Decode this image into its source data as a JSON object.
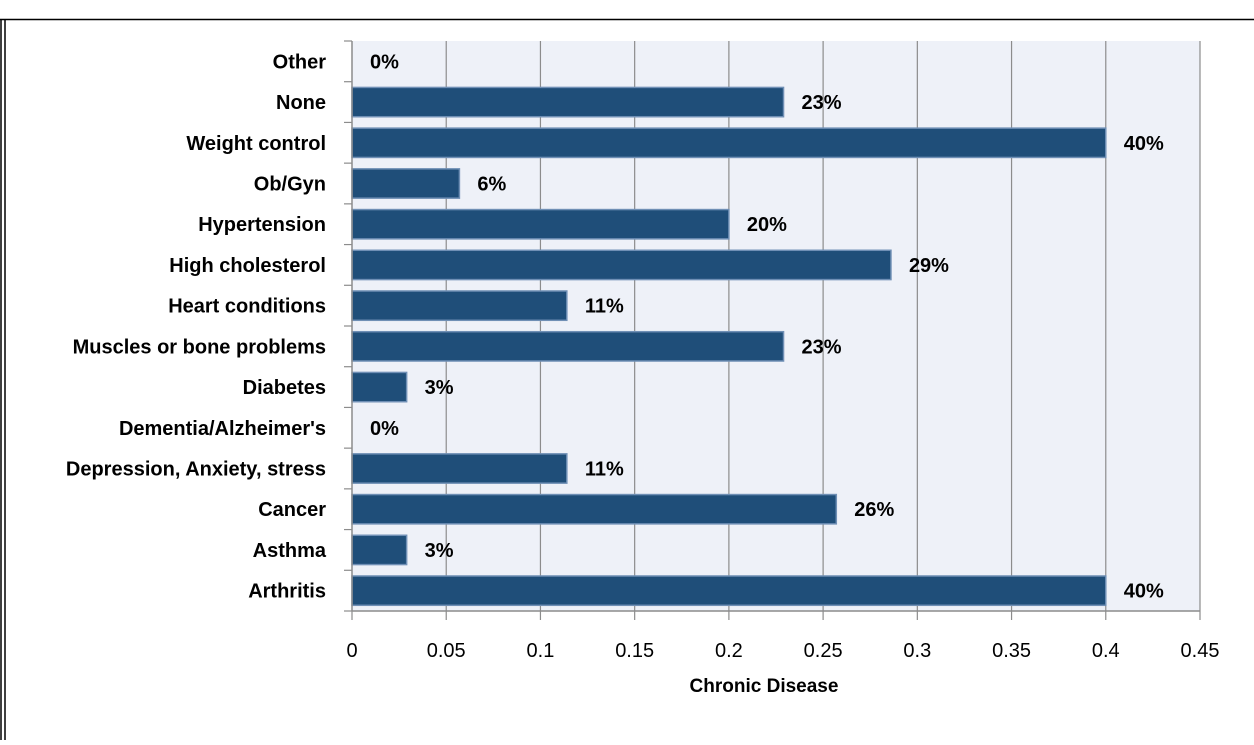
{
  "chart_data": {
    "type": "bar",
    "orientation": "horizontal",
    "xlabel": "Chronic Disease",
    "ylabel": "",
    "xlim": [
      0,
      0.45
    ],
    "x_ticks": [
      "0",
      "0.05",
      "0.1",
      "0.15",
      "0.2",
      "0.25",
      "0.3",
      "0.35",
      "0.4",
      "0.45"
    ],
    "grid": true,
    "categories": [
      "Other",
      "None",
      "Weight control",
      "Ob/Gyn",
      "Hypertension",
      "High cholesterol",
      "Heart conditions",
      "Muscles or bone problems",
      "Diabetes",
      "Dementia/Alzheimer's",
      "Depression, Anxiety, stress",
      "Cancer",
      "Asthma",
      "Arthritis"
    ],
    "values": [
      0,
      0.229,
      0.4,
      0.057,
      0.2,
      0.286,
      0.114,
      0.229,
      0.029,
      0,
      0.114,
      0.257,
      0.029,
      0.4
    ],
    "data_labels": [
      "0%",
      "23%",
      "40%",
      "6%",
      "20%",
      "29%",
      "11%",
      "23%",
      "3%",
      "0%",
      "11%",
      "26%",
      "3%",
      "40%"
    ],
    "colors": {
      "bar_fill": "#1f4e79",
      "bar_stroke": "#6f8fb5",
      "plot_background": "#eef1f8",
      "gridline": "#8c8c8c"
    }
  }
}
